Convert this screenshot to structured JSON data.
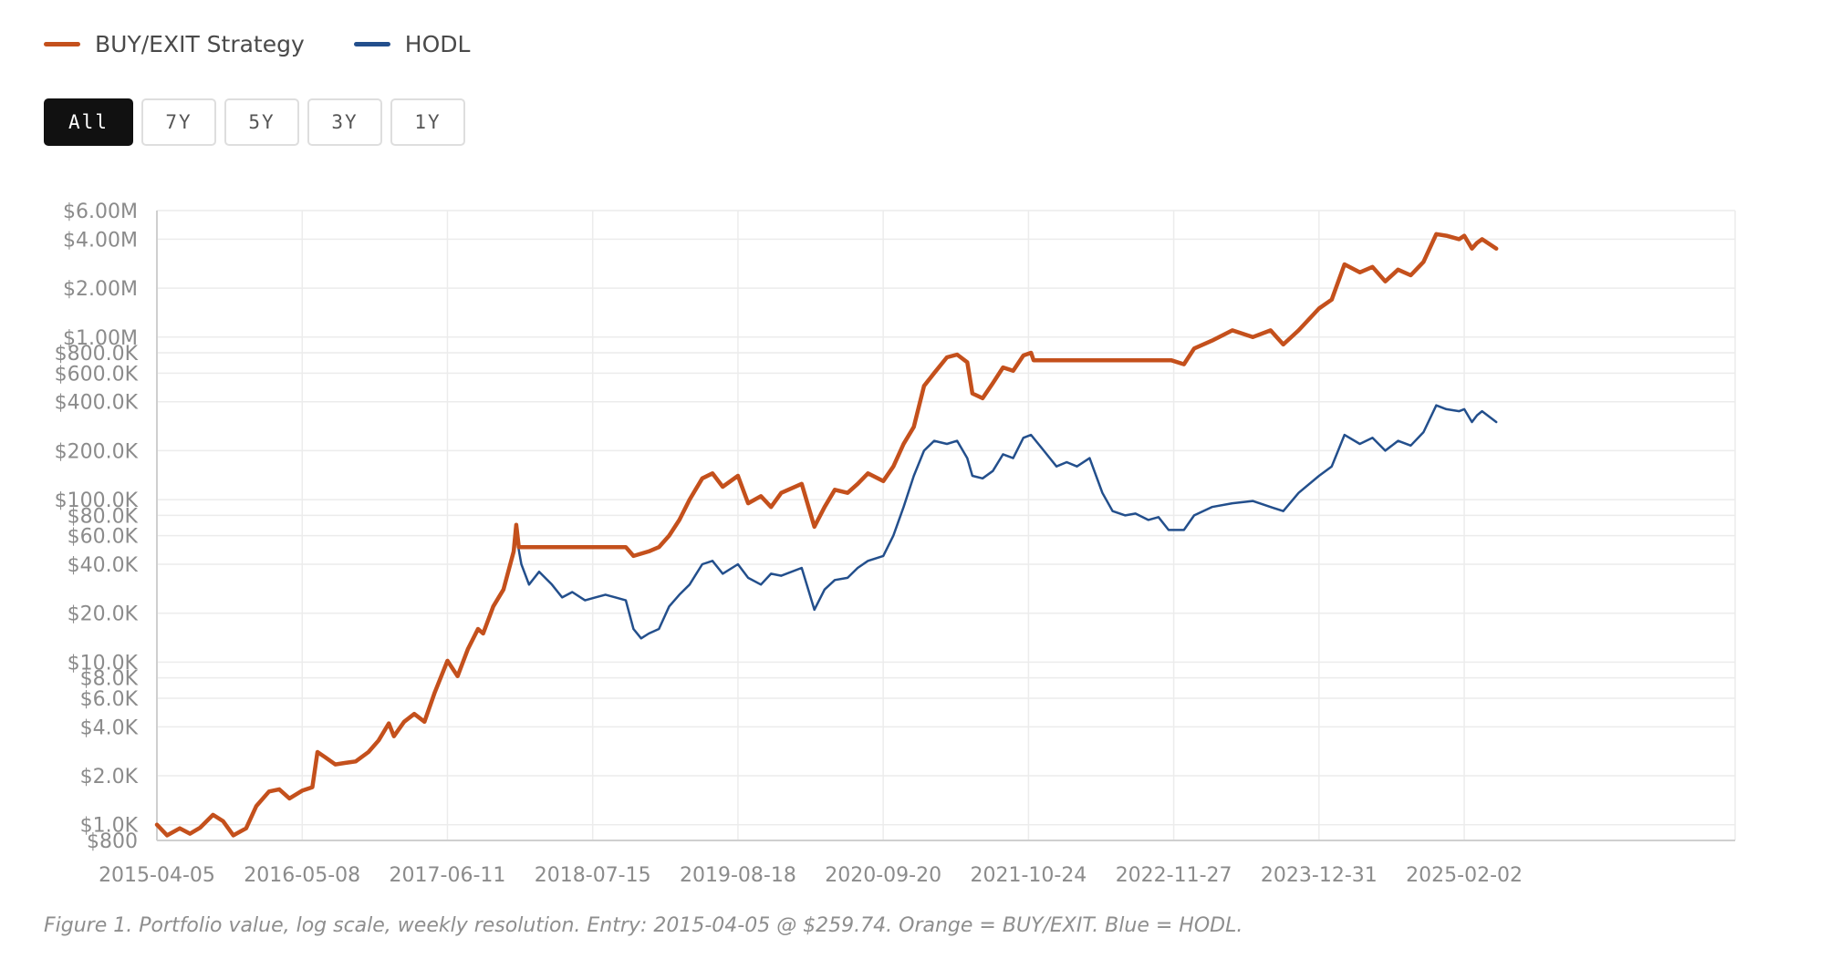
{
  "legend": [
    {
      "label": "BUY/EXIT Strategy",
      "color": "#c4501c"
    },
    {
      "label": "HODL",
      "color": "#234f8c"
    }
  ],
  "range_buttons": [
    {
      "label": "All",
      "active": true
    },
    {
      "label": "7Y",
      "active": false
    },
    {
      "label": "5Y",
      "active": false
    },
    {
      "label": "3Y",
      "active": false
    },
    {
      "label": "1Y",
      "active": false
    }
  ],
  "caption": "Figure 1. Portfolio value, log scale, weekly resolution. Entry: 2015-04-05 @ $259.74. Orange = BUY/EXIT. Blue = HODL.",
  "chart_data": {
    "type": "line",
    "scale": "log",
    "grid": true,
    "legend_position": "top-left",
    "xlim": [
      "2015-04-05",
      "2025-05-01"
    ],
    "ylim": [
      800,
      6000000
    ],
    "x_ticks": [
      "2015-04-05",
      "2016-05-08",
      "2017-06-11",
      "2018-07-15",
      "2019-08-18",
      "2020-09-20",
      "2021-10-24",
      "2022-11-27",
      "2023-12-31",
      "2025-02-02"
    ],
    "y_ticks": [
      {
        "value": 800,
        "label": "$800"
      },
      {
        "value": 1000,
        "label": "$1.0K"
      },
      {
        "value": 2000,
        "label": "$2.0K"
      },
      {
        "value": 4000,
        "label": "$4.0K"
      },
      {
        "value": 6000,
        "label": "$6.0K"
      },
      {
        "value": 8000,
        "label": "$8.0K"
      },
      {
        "value": 10000,
        "label": "$10.0K"
      },
      {
        "value": 20000,
        "label": "$20.0K"
      },
      {
        "value": 40000,
        "label": "$40.0K"
      },
      {
        "value": 60000,
        "label": "$60.0K"
      },
      {
        "value": 80000,
        "label": "$80.0K"
      },
      {
        "value": 100000,
        "label": "$100.0K"
      },
      {
        "value": 200000,
        "label": "$200.0K"
      },
      {
        "value": 400000,
        "label": "$400.0K"
      },
      {
        "value": 600000,
        "label": "$600.0K"
      },
      {
        "value": 800000,
        "label": "$800.0K"
      },
      {
        "value": 1000000,
        "label": "$1.00M"
      },
      {
        "value": 2000000,
        "label": "$2.00M"
      },
      {
        "value": 4000000,
        "label": "$4.00M"
      },
      {
        "value": 6000000,
        "label": "$6.00M"
      }
    ],
    "series": [
      {
        "name": "BUY/EXIT Strategy",
        "color": "#c4501c",
        "points": [
          [
            "2015-04-05",
            1000
          ],
          [
            "2015-05-03",
            860
          ],
          [
            "2015-06-07",
            950
          ],
          [
            "2015-07-05",
            880
          ],
          [
            "2015-08-02",
            960
          ],
          [
            "2015-09-06",
            1150
          ],
          [
            "2015-10-04",
            1050
          ],
          [
            "2015-11-01",
            860
          ],
          [
            "2015-12-06",
            950
          ],
          [
            "2016-01-03",
            1300
          ],
          [
            "2016-02-07",
            1600
          ],
          [
            "2016-03-06",
            1650
          ],
          [
            "2016-04-03",
            1450
          ],
          [
            "2016-05-08",
            1620
          ],
          [
            "2016-06-05",
            1700
          ],
          [
            "2016-06-19",
            2800
          ],
          [
            "2016-07-10",
            2600
          ],
          [
            "2016-08-07",
            2350
          ],
          [
            "2016-09-04",
            2400
          ],
          [
            "2016-10-02",
            2450
          ],
          [
            "2016-11-06",
            2800
          ],
          [
            "2016-12-04",
            3300
          ],
          [
            "2017-01-01",
            4200
          ],
          [
            "2017-01-15",
            3500
          ],
          [
            "2017-02-12",
            4300
          ],
          [
            "2017-03-12",
            4800
          ],
          [
            "2017-04-09",
            4300
          ],
          [
            "2017-05-07",
            6500
          ],
          [
            "2017-06-11",
            10200
          ],
          [
            "2017-07-09",
            8200
          ],
          [
            "2017-08-06",
            12000
          ],
          [
            "2017-09-03",
            16000
          ],
          [
            "2017-09-17",
            15000
          ],
          [
            "2017-10-15",
            22000
          ],
          [
            "2017-11-12",
            28000
          ],
          [
            "2017-12-10",
            48000
          ],
          [
            "2017-12-17",
            70000
          ],
          [
            "2017-12-24",
            51000
          ],
          [
            "2018-03-04",
            51000
          ],
          [
            "2018-06-03",
            51000
          ],
          [
            "2018-10-14",
            51000
          ],
          [
            "2018-11-04",
            45000
          ],
          [
            "2018-12-16",
            48000
          ],
          [
            "2019-01-13",
            51000
          ],
          [
            "2019-02-10",
            60000
          ],
          [
            "2019-03-10",
            75000
          ],
          [
            "2019-04-07",
            100000
          ],
          [
            "2019-05-12",
            135000
          ],
          [
            "2019-06-09",
            145000
          ],
          [
            "2019-07-07",
            120000
          ],
          [
            "2019-08-18",
            140000
          ],
          [
            "2019-09-15",
            95000
          ],
          [
            "2019-10-20",
            105000
          ],
          [
            "2019-11-17",
            90000
          ],
          [
            "2019-12-15",
            110000
          ],
          [
            "2020-02-09",
            125000
          ],
          [
            "2020-03-15",
            68000
          ],
          [
            "2020-04-12",
            90000
          ],
          [
            "2020-05-10",
            115000
          ],
          [
            "2020-06-14",
            110000
          ],
          [
            "2020-07-12",
            125000
          ],
          [
            "2020-08-09",
            145000
          ],
          [
            "2020-09-20",
            130000
          ],
          [
            "2020-10-18",
            160000
          ],
          [
            "2020-11-15",
            220000
          ],
          [
            "2020-12-13",
            280000
          ],
          [
            "2021-01-10",
            500000
          ],
          [
            "2021-02-07",
            600000
          ],
          [
            "2021-03-14",
            750000
          ],
          [
            "2021-04-11",
            780000
          ],
          [
            "2021-05-09",
            700000
          ],
          [
            "2021-05-23",
            450000
          ],
          [
            "2021-06-20",
            420000
          ],
          [
            "2021-07-18",
            520000
          ],
          [
            "2021-08-15",
            650000
          ],
          [
            "2021-09-12",
            620000
          ],
          [
            "2021-10-10",
            770000
          ],
          [
            "2021-10-31",
            800000
          ],
          [
            "2021-11-07",
            720000
          ],
          [
            "2022-03-06",
            720000
          ],
          [
            "2022-07-03",
            720000
          ],
          [
            "2022-11-20",
            720000
          ],
          [
            "2022-12-25",
            680000
          ],
          [
            "2023-01-22",
            850000
          ],
          [
            "2023-03-12",
            950000
          ],
          [
            "2023-05-07",
            1100000
          ],
          [
            "2023-07-02",
            1000000
          ],
          [
            "2023-08-20",
            1100000
          ],
          [
            "2023-09-24",
            900000
          ],
          [
            "2023-11-05",
            1100000
          ],
          [
            "2023-12-31",
            1500000
          ],
          [
            "2024-02-04",
            1700000
          ],
          [
            "2024-03-10",
            2800000
          ],
          [
            "2024-04-21",
            2500000
          ],
          [
            "2024-05-26",
            2700000
          ],
          [
            "2024-06-30",
            2200000
          ],
          [
            "2024-08-04",
            2600000
          ],
          [
            "2024-09-08",
            2400000
          ],
          [
            "2024-10-13",
            2900000
          ],
          [
            "2024-11-17",
            4300000
          ],
          [
            "2024-12-15",
            4200000
          ],
          [
            "2025-01-19",
            4000000
          ],
          [
            "2025-02-02",
            4200000
          ],
          [
            "2025-02-23",
            3500000
          ],
          [
            "2025-03-09",
            3800000
          ],
          [
            "2025-03-23",
            4000000
          ],
          [
            "2025-05-01",
            3500000
          ]
        ]
      },
      {
        "name": "HODL",
        "color": "#234f8c",
        "points": [
          [
            "2017-12-17",
            60000
          ],
          [
            "2017-12-31",
            40000
          ],
          [
            "2018-01-21",
            30000
          ],
          [
            "2018-02-18",
            36000
          ],
          [
            "2018-03-25",
            30000
          ],
          [
            "2018-04-22",
            25000
          ],
          [
            "2018-05-20",
            27000
          ],
          [
            "2018-06-24",
            24000
          ],
          [
            "2018-07-22",
            25000
          ],
          [
            "2018-08-19",
            26000
          ],
          [
            "2018-09-16",
            25000
          ],
          [
            "2018-10-14",
            24000
          ],
          [
            "2018-11-04",
            16000
          ],
          [
            "2018-11-25",
            14000
          ],
          [
            "2018-12-16",
            15000
          ],
          [
            "2019-01-13",
            16000
          ],
          [
            "2019-02-10",
            22000
          ],
          [
            "2019-03-10",
            26000
          ],
          [
            "2019-04-07",
            30000
          ],
          [
            "2019-05-12",
            40000
          ],
          [
            "2019-06-09",
            42000
          ],
          [
            "2019-07-07",
            35000
          ],
          [
            "2019-08-18",
            40000
          ],
          [
            "2019-09-15",
            33000
          ],
          [
            "2019-10-20",
            30000
          ],
          [
            "2019-11-17",
            35000
          ],
          [
            "2019-12-15",
            34000
          ],
          [
            "2020-02-09",
            38000
          ],
          [
            "2020-03-15",
            21000
          ],
          [
            "2020-04-12",
            28000
          ],
          [
            "2020-05-10",
            32000
          ],
          [
            "2020-06-14",
            33000
          ],
          [
            "2020-07-12",
            38000
          ],
          [
            "2020-08-09",
            42000
          ],
          [
            "2020-09-20",
            45000
          ],
          [
            "2020-10-18",
            60000
          ],
          [
            "2020-11-15",
            90000
          ],
          [
            "2020-12-13",
            140000
          ],
          [
            "2021-01-10",
            200000
          ],
          [
            "2021-02-07",
            230000
          ],
          [
            "2021-03-14",
            220000
          ],
          [
            "2021-04-11",
            230000
          ],
          [
            "2021-05-09",
            180000
          ],
          [
            "2021-05-23",
            140000
          ],
          [
            "2021-06-20",
            135000
          ],
          [
            "2021-07-18",
            150000
          ],
          [
            "2021-08-15",
            190000
          ],
          [
            "2021-09-12",
            180000
          ],
          [
            "2021-10-10",
            240000
          ],
          [
            "2021-10-31",
            250000
          ],
          [
            "2021-12-05",
            200000
          ],
          [
            "2022-01-09",
            160000
          ],
          [
            "2022-02-06",
            170000
          ],
          [
            "2022-03-06",
            160000
          ],
          [
            "2022-04-10",
            180000
          ],
          [
            "2022-05-15",
            110000
          ],
          [
            "2022-06-12",
            85000
          ],
          [
            "2022-07-17",
            80000
          ],
          [
            "2022-08-14",
            82000
          ],
          [
            "2022-09-18",
            75000
          ],
          [
            "2022-10-16",
            78000
          ],
          [
            "2022-11-13",
            65000
          ],
          [
            "2022-12-25",
            65000
          ],
          [
            "2023-01-22",
            80000
          ],
          [
            "2023-03-12",
            90000
          ],
          [
            "2023-05-07",
            95000
          ],
          [
            "2023-07-02",
            98000
          ],
          [
            "2023-08-20",
            90000
          ],
          [
            "2023-09-24",
            85000
          ],
          [
            "2023-11-05",
            110000
          ],
          [
            "2023-12-31",
            140000
          ],
          [
            "2024-02-04",
            160000
          ],
          [
            "2024-03-10",
            250000
          ],
          [
            "2024-04-21",
            220000
          ],
          [
            "2024-05-26",
            240000
          ],
          [
            "2024-06-30",
            200000
          ],
          [
            "2024-08-04",
            230000
          ],
          [
            "2024-09-08",
            215000
          ],
          [
            "2024-10-13",
            260000
          ],
          [
            "2024-11-17",
            380000
          ],
          [
            "2024-12-15",
            360000
          ],
          [
            "2025-01-19",
            350000
          ],
          [
            "2025-02-02",
            360000
          ],
          [
            "2025-02-23",
            300000
          ],
          [
            "2025-03-09",
            330000
          ],
          [
            "2025-03-23",
            350000
          ],
          [
            "2025-05-01",
            300000
          ]
        ]
      }
    ]
  }
}
